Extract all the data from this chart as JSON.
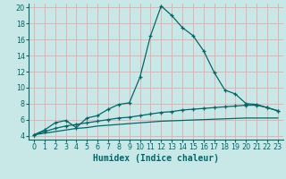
{
  "title": "",
  "xlabel": "Humidex (Indice chaleur)",
  "background_color": "#c8e8e8",
  "grid_color": "#e8b0b0",
  "line_color": "#006868",
  "xlim": [
    -0.5,
    23.5
  ],
  "ylim": [
    3.5,
    20.5
  ],
  "xticks": [
    0,
    1,
    2,
    3,
    4,
    5,
    6,
    7,
    8,
    9,
    10,
    11,
    12,
    13,
    14,
    15,
    16,
    17,
    18,
    19,
    20,
    21,
    22,
    23
  ],
  "yticks": [
    4,
    6,
    8,
    10,
    12,
    14,
    16,
    18,
    20
  ],
  "curve1_x": [
    0,
    1,
    2,
    3,
    4,
    5,
    6,
    7,
    8,
    9,
    10,
    11,
    12,
    13,
    14,
    15,
    16,
    17,
    18,
    19,
    20,
    21,
    22,
    23
  ],
  "curve1_y": [
    4.1,
    4.7,
    5.6,
    5.9,
    5.0,
    6.2,
    6.5,
    7.3,
    7.9,
    8.1,
    11.3,
    16.5,
    20.2,
    19.0,
    17.5,
    16.5,
    14.6,
    11.9,
    9.7,
    9.2,
    8.0,
    7.9,
    7.5,
    7.1
  ],
  "curve2_x": [
    0,
    1,
    2,
    3,
    4,
    5,
    6,
    7,
    8,
    9,
    10,
    11,
    12,
    13,
    14,
    15,
    16,
    17,
    18,
    19,
    20,
    21,
    22,
    23
  ],
  "curve2_y": [
    4.1,
    4.5,
    4.9,
    5.2,
    5.4,
    5.6,
    5.8,
    6.0,
    6.2,
    6.3,
    6.5,
    6.7,
    6.9,
    7.0,
    7.2,
    7.3,
    7.4,
    7.5,
    7.6,
    7.7,
    7.8,
    7.8,
    7.5,
    7.1
  ],
  "curve3_x": [
    0,
    1,
    2,
    3,
    4,
    5,
    6,
    7,
    8,
    9,
    10,
    11,
    12,
    13,
    14,
    15,
    16,
    17,
    18,
    19,
    20,
    21,
    22,
    23
  ],
  "curve3_y": [
    4.1,
    4.3,
    4.5,
    4.7,
    4.9,
    5.0,
    5.2,
    5.3,
    5.4,
    5.5,
    5.6,
    5.7,
    5.8,
    5.85,
    5.9,
    5.95,
    6.0,
    6.05,
    6.1,
    6.15,
    6.2,
    6.2,
    6.2,
    6.2
  ],
  "tick_fontsize": 5.8,
  "label_fontsize": 7.0
}
